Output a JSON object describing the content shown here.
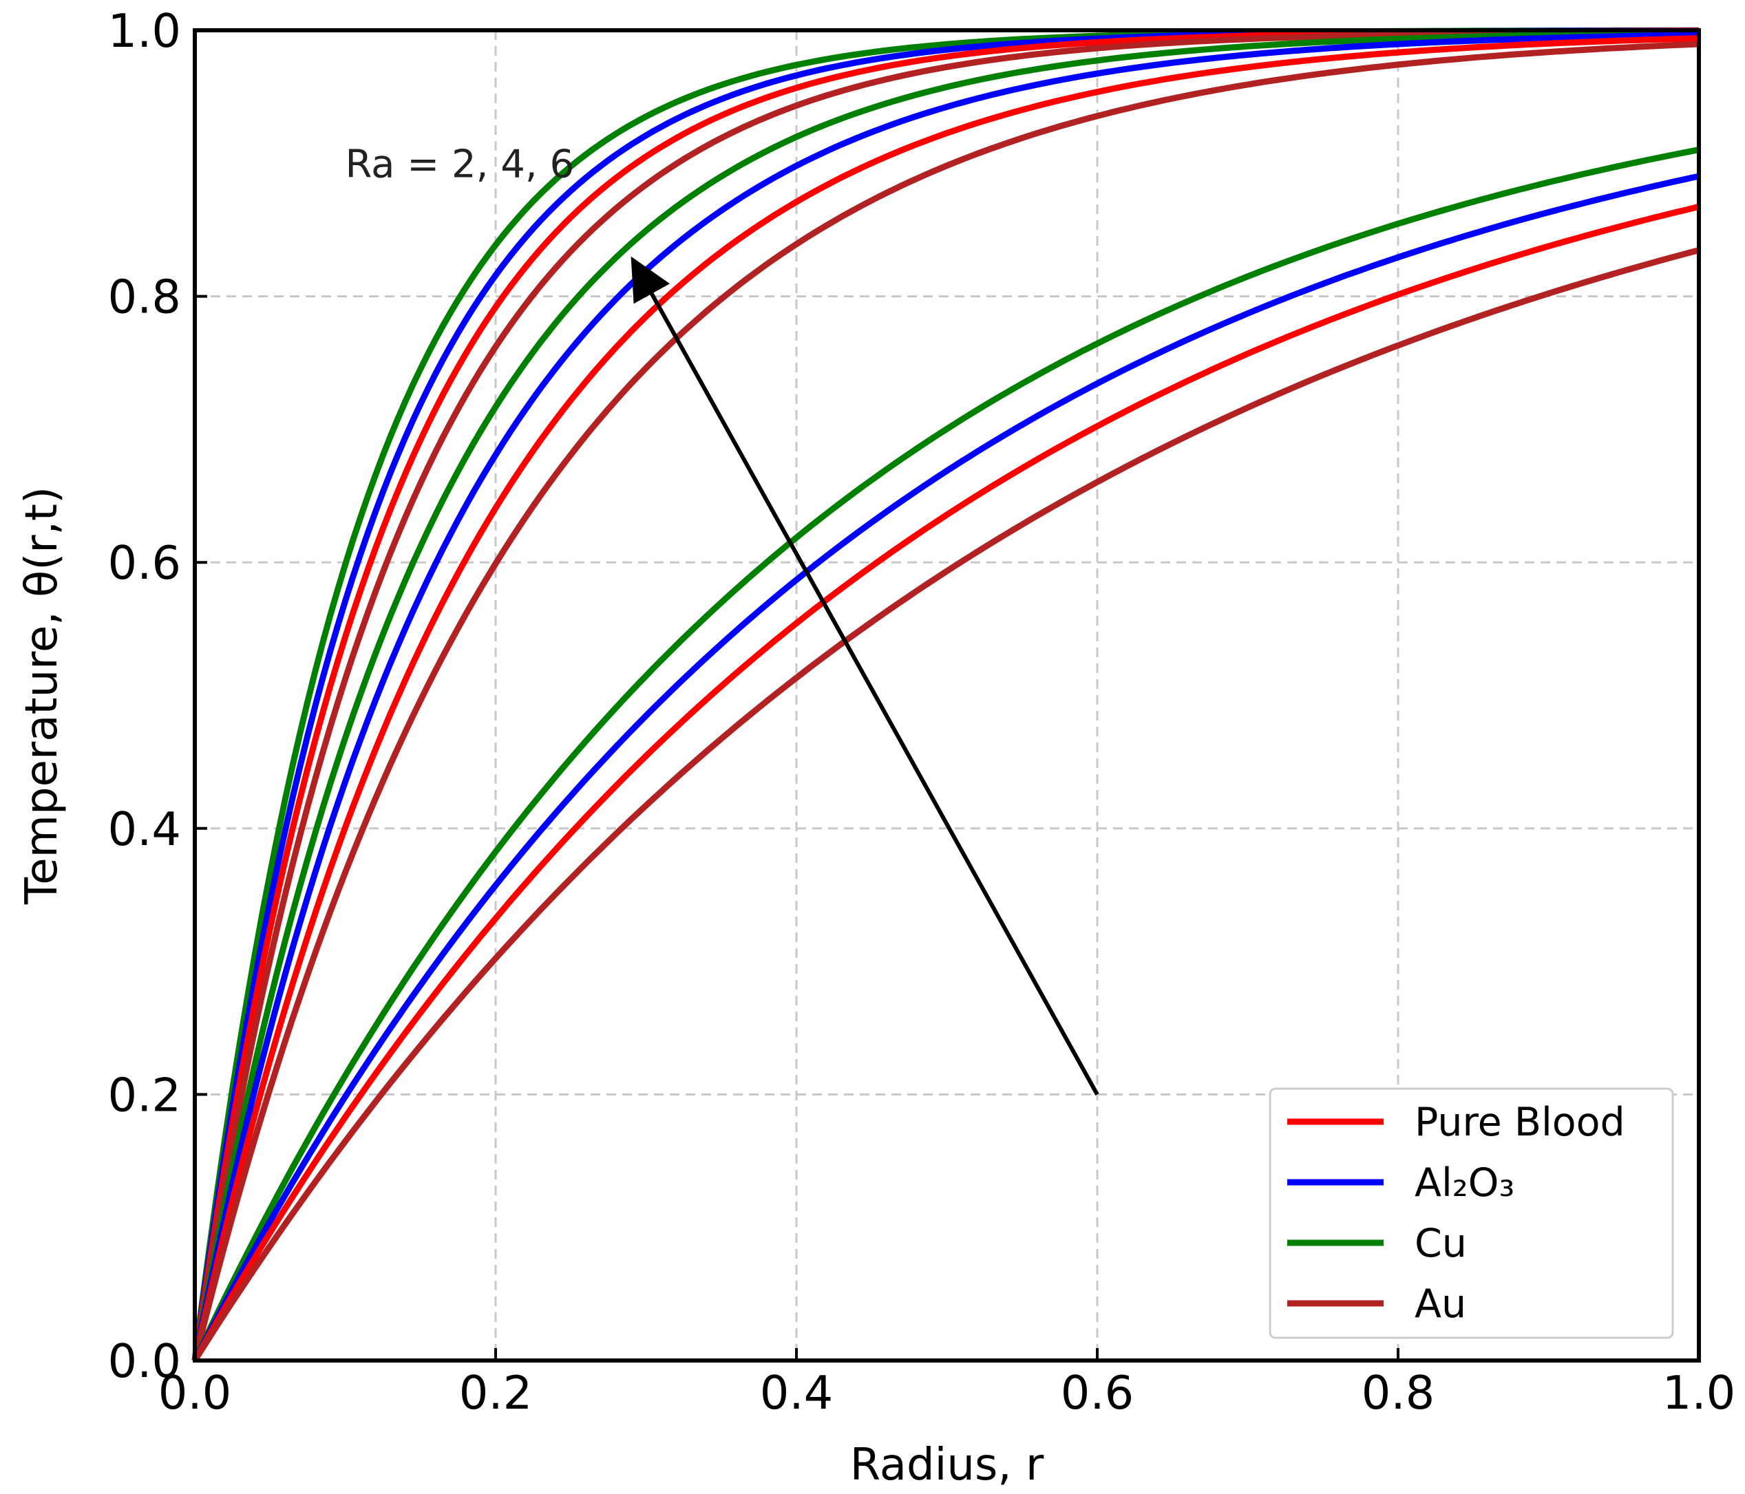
{
  "chart_data": {
    "type": "line",
    "title": "",
    "xlabel": "Radius, r",
    "ylabel": "Temperature, θ(r,t)",
    "xlim": [
      0.0,
      1.0
    ],
    "ylim": [
      0.0,
      1.0
    ],
    "xticks": [
      "0.0",
      "0.2",
      "0.4",
      "0.6",
      "0.8",
      "1.0"
    ],
    "yticks": [
      "0.0",
      "0.2",
      "0.4",
      "0.6",
      "0.8",
      "1.0"
    ],
    "grid": true,
    "legend_position": "bottom-right",
    "legend": [
      {
        "label": "Pure Blood",
        "color": "#ff0000"
      },
      {
        "label": "Al₂O₃",
        "color": "#0000ff"
      },
      {
        "label": "Cu",
        "color": "#008000"
      },
      {
        "label": "Au",
        "color": "#b22222"
      }
    ],
    "annotation": {
      "text": "Ra = 2, 4, 6",
      "arrow_from": [
        0.6,
        0.2
      ],
      "arrow_to": [
        0.29,
        0.83
      ]
    },
    "x": [
      0.0,
      0.05,
      0.1,
      0.15,
      0.2,
      0.25,
      0.3,
      0.35,
      0.4,
      0.45,
      0.5,
      0.55,
      0.6,
      0.65,
      0.7,
      0.75,
      0.8,
      0.85,
      0.9,
      0.95,
      1.0
    ],
    "series": [
      {
        "name": "Cu, Ra = 6",
        "color": "#008000",
        "rate": 9.12
      },
      {
        "name": "Al2O3, Ra = 6",
        "color": "#0000ff",
        "rate": 8.46
      },
      {
        "name": "Pure Blood, Ra = 6",
        "color": "#ff0000",
        "rate": 7.85
      },
      {
        "name": "Au, Ra = 6",
        "color": "#b22222",
        "rate": 7.18
      },
      {
        "name": "Cu, Ra = 4",
        "color": "#008000",
        "rate": 6.31
      },
      {
        "name": "Al2O3, Ra = 4",
        "color": "#0000ff",
        "rate": 5.71
      },
      {
        "name": "Pure Blood, Ra = 4",
        "color": "#ff0000",
        "rate": 5.12
      },
      {
        "name": "Au, Ra = 4",
        "color": "#b22222",
        "rate": 4.57
      },
      {
        "name": "Cu, Ra = 2",
        "color": "#008000",
        "rate": 2.41
      },
      {
        "name": "Al2O3, Ra = 2",
        "color": "#0000ff",
        "rate": 2.21
      },
      {
        "name": "Pure Blood, Ra = 2",
        "color": "#ff0000",
        "rate": 2.02
      },
      {
        "name": "Au, Ra = 2",
        "color": "#b22222",
        "rate": 1.8
      }
    ]
  }
}
